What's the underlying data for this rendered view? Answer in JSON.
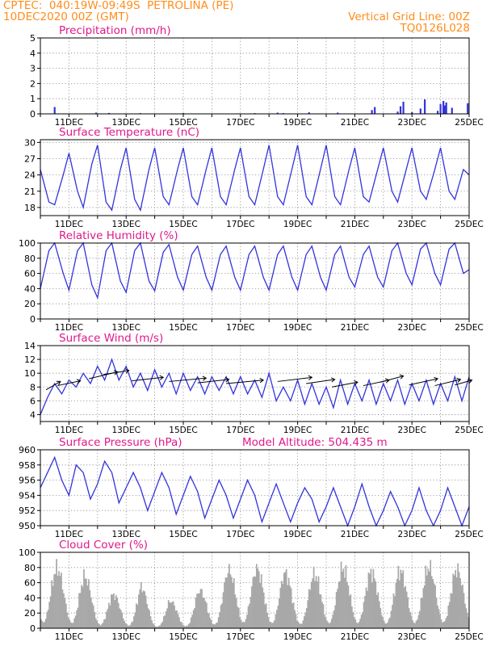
{
  "header": {
    "line1_left": "CPTEC:  040:19W-09:49S  PETROLINA (PE)",
    "line2_left": "10DEC2020 00Z (GMT)",
    "line1_right": "Vertical Grid Line: 00Z",
    "line2_right": "TQ0126L028"
  },
  "colors": {
    "header": "#ff8c1a",
    "title": "#e0198a",
    "series": "#3333dd",
    "cloud": "#a8a8a8",
    "grid": "#888888"
  },
  "x_tick_labels": [
    "11DEC",
    "13DEC",
    "15DEC",
    "17DEC",
    "19DEC",
    "21DEC",
    "23DEC",
    "25DEC"
  ],
  "chart_data": [
    {
      "id": "precip",
      "type": "bar",
      "title": "Precipitation (mm/h)",
      "ylim": [
        0,
        5
      ],
      "yticks": [
        0,
        1,
        2,
        3,
        4,
        5
      ],
      "grid": true,
      "x_unit": "days since 10DEC2020 00Z",
      "x": [
        0.5,
        1.95,
        2.4,
        3.5,
        5.0,
        7.5,
        8.3,
        8.5,
        9.4,
        10.4,
        11.6,
        11.7,
        12.5,
        12.6,
        12.7,
        13.0,
        13.3,
        13.45,
        13.9,
        14.0,
        14.1,
        14.15,
        14.2,
        14.4,
        14.95
      ],
      "values": [
        0.45,
        0.08,
        0.06,
        0.05,
        0.05,
        0.05,
        0.08,
        0.05,
        0.1,
        0.08,
        0.25,
        0.45,
        0.15,
        0.5,
        0.8,
        0.12,
        0.35,
        0.95,
        0.2,
        0.65,
        0.85,
        0.55,
        0.75,
        0.4,
        0.7
      ]
    },
    {
      "id": "temp",
      "type": "line",
      "title": "Surface Temperature (nC)",
      "ylim": [
        16.5,
        30.5
      ],
      "yticks": [
        18,
        21,
        24,
        27,
        30
      ],
      "grid": true,
      "x_unit": "days since 10DEC2020 00Z",
      "x": [
        0.0,
        0.3,
        0.5,
        0.8,
        1.0,
        1.3,
        1.5,
        1.8,
        2.0,
        2.3,
        2.5,
        2.8,
        3.0,
        3.3,
        3.5,
        3.8,
        4.0,
        4.3,
        4.5,
        4.8,
        5.0,
        5.3,
        5.5,
        5.8,
        6.0,
        6.3,
        6.5,
        6.8,
        7.0,
        7.3,
        7.5,
        7.8,
        8.0,
        8.3,
        8.5,
        8.8,
        9.0,
        9.3,
        9.5,
        9.8,
        10.0,
        10.3,
        10.5,
        10.8,
        11.0,
        11.3,
        11.5,
        11.8,
        12.0,
        12.3,
        12.5,
        12.8,
        13.0,
        13.3,
        13.5,
        13.8,
        14.0,
        14.3,
        14.5,
        14.8,
        15.0
      ],
      "values": [
        25.0,
        19.0,
        18.5,
        24.0,
        28.0,
        21.0,
        18.0,
        26.0,
        29.5,
        19.0,
        17.5,
        25.0,
        29.0,
        19.5,
        17.5,
        25.0,
        29.0,
        20.0,
        18.5,
        25.0,
        29.0,
        20.0,
        18.5,
        25.0,
        29.0,
        20.0,
        18.5,
        25.0,
        29.0,
        20.0,
        18.5,
        25.0,
        29.5,
        20.0,
        18.5,
        25.0,
        29.5,
        20.0,
        18.5,
        25.0,
        29.5,
        20.0,
        18.5,
        25.0,
        29.0,
        20.0,
        19.0,
        25.0,
        29.0,
        21.0,
        19.0,
        25.0,
        29.0,
        21.0,
        19.5,
        25.0,
        29.0,
        21.0,
        19.5,
        25.0,
        24.0
      ]
    },
    {
      "id": "rh",
      "type": "line",
      "title": "Relative Humidity (%)",
      "ylim": [
        0,
        100
      ],
      "yticks": [
        0,
        20,
        40,
        60,
        80,
        100
      ],
      "grid": true,
      "x_unit": "days since 10DEC2020 00Z",
      "x": [
        0.0,
        0.3,
        0.5,
        0.8,
        1.0,
        1.3,
        1.5,
        1.8,
        2.0,
        2.3,
        2.5,
        2.8,
        3.0,
        3.3,
        3.5,
        3.8,
        4.0,
        4.3,
        4.5,
        4.8,
        5.0,
        5.3,
        5.5,
        5.8,
        6.0,
        6.3,
        6.5,
        6.8,
        7.0,
        7.3,
        7.5,
        7.8,
        8.0,
        8.3,
        8.5,
        8.8,
        9.0,
        9.3,
        9.5,
        9.8,
        10.0,
        10.3,
        10.5,
        10.8,
        11.0,
        11.3,
        11.5,
        11.8,
        12.0,
        12.3,
        12.5,
        12.8,
        13.0,
        13.3,
        13.5,
        13.8,
        14.0,
        14.3,
        14.5,
        14.8,
        15.0
      ],
      "values": [
        40.0,
        90.0,
        100.0,
        60.0,
        38.0,
        90.0,
        100.0,
        45.0,
        28.0,
        90.0,
        100.0,
        50.0,
        35.0,
        90.0,
        100.0,
        50.0,
        37.0,
        88.0,
        98.0,
        55.0,
        38.0,
        85.0,
        96.0,
        55.0,
        38.0,
        85.0,
        96.0,
        55.0,
        38.0,
        85.0,
        96.0,
        55.0,
        38.0,
        85.0,
        96.0,
        55.0,
        38.0,
        85.0,
        96.0,
        55.0,
        38.0,
        85.0,
        96.0,
        55.0,
        42.0,
        85.0,
        96.0,
        55.0,
        42.0,
        90.0,
        100.0,
        60.0,
        45.0,
        92.0,
        100.0,
        60.0,
        45.0,
        92.0,
        100.0,
        60.0,
        65.0
      ]
    },
    {
      "id": "wind",
      "type": "line",
      "title": "Surface Wind (m/s)",
      "ylim": [
        3,
        14
      ],
      "yticks": [
        4,
        6,
        8,
        10,
        12,
        14
      ],
      "grid": true,
      "x_unit": "days since 10DEC2020 00Z",
      "x": [
        0.0,
        0.25,
        0.5,
        0.75,
        1.0,
        1.25,
        1.5,
        1.75,
        2.0,
        2.25,
        2.5,
        2.75,
        3.0,
        3.25,
        3.5,
        3.75,
        4.0,
        4.25,
        4.5,
        4.75,
        5.0,
        5.25,
        5.5,
        5.75,
        6.0,
        6.25,
        6.5,
        6.75,
        7.0,
        7.25,
        7.5,
        7.75,
        8.0,
        8.25,
        8.5,
        8.75,
        9.0,
        9.25,
        9.5,
        9.75,
        10.0,
        10.25,
        10.5,
        10.75,
        11.0,
        11.25,
        11.5,
        11.75,
        12.0,
        12.25,
        12.5,
        12.75,
        13.0,
        13.25,
        13.5,
        13.75,
        14.0,
        14.25,
        14.5,
        14.75,
        15.0
      ],
      "values": [
        4.0,
        6.5,
        8.5,
        7.0,
        9.0,
        8.0,
        10.0,
        8.5,
        11.0,
        9.0,
        12.0,
        9.0,
        11.0,
        8.0,
        10.0,
        7.5,
        10.5,
        8.0,
        10.0,
        7.0,
        10.0,
        7.5,
        9.5,
        7.0,
        9.5,
        7.5,
        9.5,
        7.0,
        9.5,
        7.0,
        9.0,
        6.5,
        10.0,
        6.0,
        8.0,
        6.0,
        9.0,
        5.5,
        8.5,
        5.5,
        8.0,
        5.0,
        9.0,
        5.5,
        8.5,
        6.0,
        9.0,
        5.5,
        8.5,
        6.0,
        9.0,
        5.5,
        8.5,
        6.0,
        9.0,
        5.5,
        8.5,
        6.0,
        9.5,
        6.0,
        9.5
      ],
      "vectors": [
        {
          "x": 0.2,
          "y": 7.6,
          "dx": 0.5,
          "dy": 1.2
        },
        {
          "x": 0.6,
          "y": 8.2,
          "dx": 0.8,
          "dy": 0.7
        },
        {
          "x": 1.7,
          "y": 9.2,
          "dx": 1.0,
          "dy": 1.0
        },
        {
          "x": 2.2,
          "y": 9.8,
          "dx": 0.9,
          "dy": 0.6
        },
        {
          "x": 3.2,
          "y": 8.9,
          "dx": 1.1,
          "dy": 0.5
        },
        {
          "x": 4.5,
          "y": 8.8,
          "dx": 1.3,
          "dy": 0.5
        },
        {
          "x": 5.5,
          "y": 8.6,
          "dx": 1.1,
          "dy": 0.5
        },
        {
          "x": 6.5,
          "y": 8.5,
          "dx": 1.3,
          "dy": 0.5
        },
        {
          "x": 8.3,
          "y": 8.8,
          "dx": 1.2,
          "dy": 0.6
        },
        {
          "x": 9.3,
          "y": 8.5,
          "dx": 1.0,
          "dy": 0.6
        },
        {
          "x": 10.2,
          "y": 8.0,
          "dx": 0.9,
          "dy": 0.7
        },
        {
          "x": 11.3,
          "y": 8.2,
          "dx": 0.9,
          "dy": 0.8
        },
        {
          "x": 11.9,
          "y": 8.7,
          "dx": 0.8,
          "dy": 0.9
        },
        {
          "x": 12.9,
          "y": 8.3,
          "dx": 1.0,
          "dy": 0.9
        },
        {
          "x": 13.8,
          "y": 8.2,
          "dx": 0.9,
          "dy": 0.9
        },
        {
          "x": 14.5,
          "y": 8.3,
          "dx": 0.6,
          "dy": 0.7
        }
      ]
    },
    {
      "id": "pres",
      "type": "line",
      "title": "Surface Pressure (hPa)",
      "subtitle": "Model Altitude: 504.435 m",
      "ylim": [
        950,
        960
      ],
      "yticks": [
        950,
        952,
        954,
        956,
        958,
        960
      ],
      "grid": true,
      "x_unit": "days since 10DEC2020 00Z",
      "x": [
        0.0,
        0.25,
        0.5,
        0.75,
        1.0,
        1.25,
        1.5,
        1.75,
        2.0,
        2.25,
        2.5,
        2.75,
        3.0,
        3.25,
        3.5,
        3.75,
        4.0,
        4.25,
        4.5,
        4.75,
        5.0,
        5.25,
        5.5,
        5.75,
        6.0,
        6.25,
        6.5,
        6.75,
        7.0,
        7.25,
        7.5,
        7.75,
        8.0,
        8.25,
        8.5,
        8.75,
        9.0,
        9.25,
        9.5,
        9.75,
        10.0,
        10.25,
        10.5,
        10.75,
        11.0,
        11.25,
        11.5,
        11.75,
        12.0,
        12.25,
        12.5,
        12.75,
        13.0,
        13.25,
        13.5,
        13.75,
        14.0,
        14.25,
        14.5,
        14.75,
        15.0
      ],
      "values": [
        955.0,
        957.0,
        959.0,
        956.0,
        954.0,
        958.0,
        957.0,
        953.5,
        955.5,
        958.5,
        957.0,
        953.0,
        955.0,
        957.0,
        955.0,
        952.0,
        954.5,
        957.0,
        955.0,
        951.5,
        954.0,
        956.5,
        954.5,
        951.0,
        953.5,
        956.0,
        954.0,
        951.0,
        953.5,
        956.0,
        954.0,
        950.5,
        953.0,
        955.5,
        953.0,
        950.5,
        953.0,
        955.0,
        953.5,
        950.5,
        952.5,
        955.0,
        952.5,
        950.0,
        952.5,
        955.5,
        952.5,
        950.0,
        952.0,
        954.5,
        952.5,
        950.0,
        952.0,
        955.0,
        952.0,
        950.0,
        952.0,
        955.0,
        952.5,
        950.0,
        952.5
      ]
    },
    {
      "id": "cloud",
      "type": "bar",
      "title": "Cloud Cover (%)",
      "ylim": [
        0,
        100
      ],
      "yticks": [
        0,
        20,
        40,
        60,
        80,
        100
      ],
      "grid": true,
      "x_unit": "days since 10DEC2020 00Z",
      "x_range": [
        0,
        15
      ],
      "dx_hours": 1,
      "envelope": {
        "days": [
          0.0,
          0.5,
          1.0,
          1.5,
          2.0,
          2.5,
          3.0,
          3.5,
          4.0,
          4.5,
          5.0,
          5.5,
          6.0,
          6.5,
          7.0,
          7.5,
          8.0,
          8.5,
          9.0,
          9.5,
          10.0,
          10.5,
          11.0,
          11.5,
          12.0,
          12.5,
          13.0,
          13.5,
          14.0,
          14.5,
          15.0
        ],
        "values": [
          90,
          95,
          80,
          85,
          50,
          55,
          35,
          70,
          20,
          45,
          25,
          60,
          50,
          90,
          85,
          95,
          75,
          90,
          60,
          85,
          75,
          95,
          80,
          90,
          70,
          90,
          80,
          95,
          90,
          95,
          70
        ]
      }
    }
  ]
}
